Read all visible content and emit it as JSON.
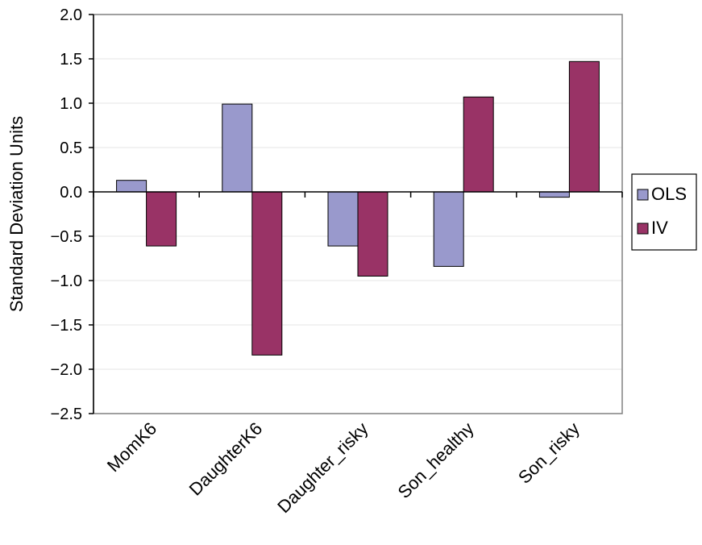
{
  "chart_data": {
    "type": "bar",
    "title": "",
    "xlabel": "",
    "ylabel": "Standard Deviation Units",
    "ylim": [
      -2.5,
      2.0
    ],
    "yticks": [
      2.0,
      1.5,
      1.0,
      0.5,
      0.0,
      -0.5,
      -1.0,
      -1.5,
      -2.0,
      -2.5
    ],
    "ytick_labels": [
      "2.0",
      "1.5",
      "1.0",
      "0.5",
      "0.0",
      "−0.5",
      "−1.0",
      "−1.5",
      "−2.0",
      "−2.5"
    ],
    "categories": [
      "MomK6",
      "DaughterK6",
      "Daughter_risky",
      "Son_healthy",
      "Son_risky"
    ],
    "series": [
      {
        "name": "OLS",
        "color": "#9999cc",
        "values": [
          0.13,
          0.99,
          -0.61,
          -0.84,
          -0.06
        ]
      },
      {
        "name": "IV",
        "color": "#993366",
        "values": [
          -0.61,
          -1.84,
          -0.95,
          1.07,
          1.47
        ]
      }
    ],
    "grid": true,
    "legend_position": "right"
  }
}
